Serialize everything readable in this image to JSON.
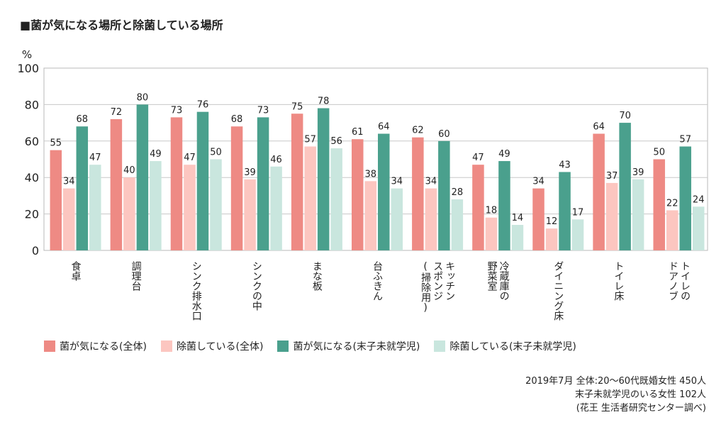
{
  "title": "■菌が気になる場所と除菌している場所",
  "chart_data": {
    "type": "bar",
    "ylabel": "%",
    "ylim": [
      0,
      100
    ],
    "yticks": [
      0,
      20,
      40,
      60,
      80,
      100
    ],
    "grid": true,
    "legend_position": "bottom",
    "categories": [
      "食卓",
      "調理台",
      "シンク排水口",
      "シンクの中",
      "まな板",
      "台ふきん",
      "キッチンスポンジ(掃除用)",
      "冷蔵庫の野菜室",
      "ダイニング床",
      "トイレ床",
      "トイレのドアノブ"
    ],
    "category_lines": [
      [
        "食卓"
      ],
      [
        "調理台"
      ],
      [
        "シンク排水口"
      ],
      [
        "シンクの中"
      ],
      [
        "まな板"
      ],
      [
        "台ふきん"
      ],
      [
        "キッチン",
        "スポンジ",
        "(掃除用)"
      ],
      [
        "冷蔵庫の",
        "野菜室"
      ],
      [
        "ダイニング床"
      ],
      [
        "トイレ床"
      ],
      [
        "トイレの",
        "ドアノブ"
      ]
    ],
    "series": [
      {
        "name": "菌が気になる(全体)",
        "color": "#ee8a84",
        "values": [
          55,
          72,
          73,
          68,
          75,
          61,
          62,
          47,
          34,
          64,
          50
        ]
      },
      {
        "name": "除菌している(全体)",
        "color": "#fcc6c0",
        "values": [
          34,
          40,
          47,
          39,
          57,
          38,
          34,
          18,
          12,
          37,
          22
        ]
      },
      {
        "name": "菌が気になる(末子未就学児)",
        "color": "#4aa08d",
        "values": [
          68,
          80,
          76,
          73,
          78,
          64,
          60,
          49,
          43,
          70,
          57
        ]
      },
      {
        "name": "除菌している(末子未就学児)",
        "color": "#c9e6de",
        "values": [
          47,
          49,
          50,
          46,
          56,
          34,
          28,
          14,
          17,
          39,
          24
        ]
      }
    ]
  },
  "source_lines": [
    "2019年7月 全体:20〜60代既婚女性 450人",
    "末子未就学児のいる女性 102人",
    "(花王 生活者研究センター調べ)"
  ]
}
